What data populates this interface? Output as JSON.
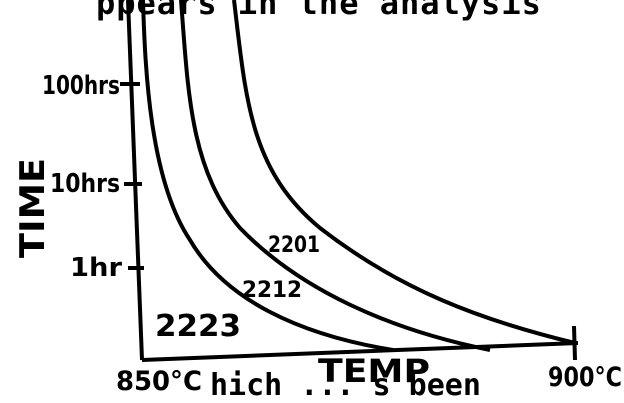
{
  "header_text": "ppears in the analysis",
  "footer_text": "hich ... s been",
  "chart_data": {
    "type": "line",
    "ylabel": "TIME",
    "xlabel": "TEMP",
    "x_tick_labels": [
      "850°C",
      "900°C"
    ],
    "y_tick_labels": [
      "1hr",
      "10hrs",
      "100hrs"
    ],
    "series": [
      {
        "name": "2223"
      },
      {
        "name": "2212"
      },
      {
        "name": "2201"
      }
    ]
  }
}
